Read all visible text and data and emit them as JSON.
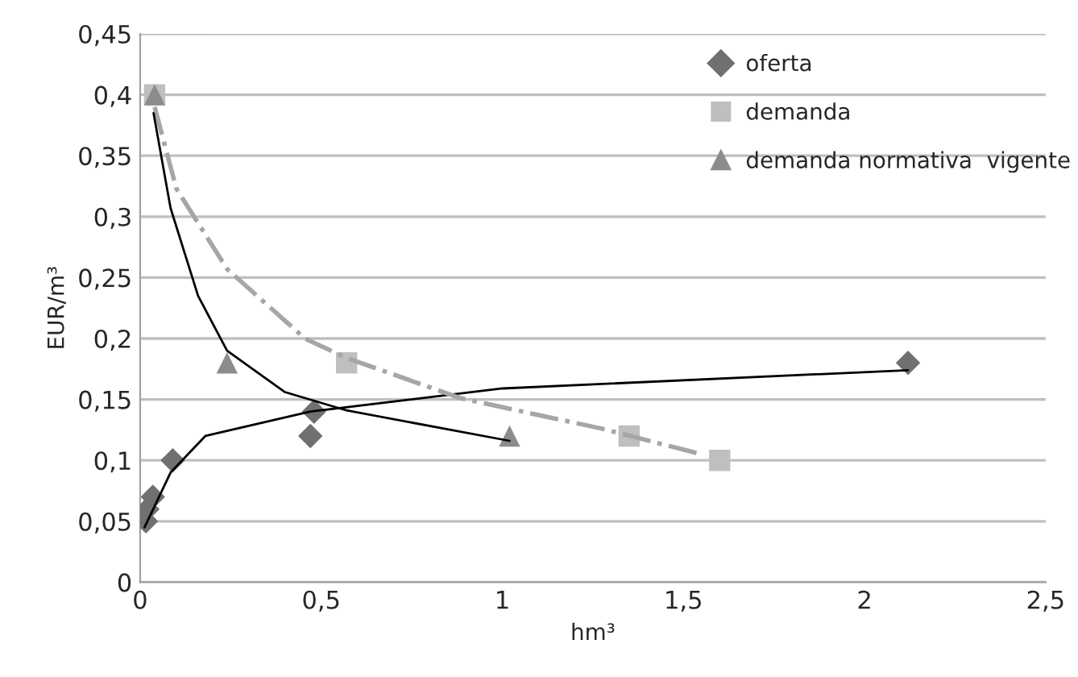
{
  "chart_data": {
    "type": "scatter",
    "xlabel": "hm³",
    "ylabel": "EUR/m³",
    "xlim": [
      0,
      2.5
    ],
    "ylim": [
      0,
      0.45
    ],
    "xticks": [
      0,
      {
        "value": 0.5,
        "label": "0,5"
      },
      1,
      {
        "value": 1.5,
        "label": "1,5"
      },
      2,
      {
        "value": 2.5,
        "label": "2,5"
      }
    ],
    "yticks": [
      0,
      {
        "value": 0.05,
        "label": "0,05"
      },
      {
        "value": 0.1,
        "label": "0,1"
      },
      {
        "value": 0.15,
        "label": "0,15"
      },
      {
        "value": 0.2,
        "label": "0,2"
      },
      {
        "value": 0.25,
        "label": "0,25"
      },
      {
        "value": 0.3,
        "label": "0,3"
      },
      {
        "value": 0.35,
        "label": "0,35"
      },
      {
        "value": 0.4,
        "label": "0,4"
      },
      {
        "value": 0.45,
        "label": "0,45"
      }
    ],
    "grid": "y",
    "legend": "top right",
    "series": [
      {
        "type": "line",
        "color": "#000000",
        "marker": "none",
        "line_style": "solid",
        "x": [
          0.012,
          0.084,
          0.18,
          0.47,
          1.0,
          2.12
        ],
        "values": [
          0.045,
          0.09,
          0.12,
          0.14,
          0.159,
          0.174
        ]
      },
      {
        "type": "line",
        "color": "#a6a6a6",
        "marker": "none",
        "line_style": "dashed",
        "x": [
          0.04,
          0.1,
          0.24,
          0.455,
          0.57,
          0.885,
          1.275,
          1.55
        ],
        "values": [
          0.39,
          0.323,
          0.257,
          0.2,
          0.184,
          0.151,
          0.126,
          0.105
        ]
      },
      {
        "type": "line",
        "color": "#000000",
        "marker": "none",
        "line_style": "solid",
        "x": [
          0.037,
          0.084,
          0.16,
          0.24,
          0.4,
          0.57,
          1.02
        ],
        "values": [
          0.385,
          0.307,
          0.235,
          0.19,
          0.156,
          0.141,
          0.116
        ]
      },
      {
        "name": "oferta",
        "color": "#707070",
        "marker": "diamond",
        "x": [
          0.016,
          0.02,
          0.035,
          0.09,
          0.47,
          0.48,
          2.12
        ],
        "values": [
          0.05,
          0.06,
          0.07,
          0.1,
          0.12,
          0.14,
          0.18
        ]
      },
      {
        "name": "demanda",
        "color": "#bfbfbf",
        "marker": "square",
        "x": [
          0.04,
          0.57,
          1.35,
          1.6
        ],
        "values": [
          0.4,
          0.18,
          0.12,
          0.1
        ]
      },
      {
        "name": "demanda normativa  vigente",
        "color": "#8c8c8c",
        "marker": "triangle",
        "x": [
          0.04,
          0.24,
          1.02
        ],
        "values": [
          0.4,
          0.18,
          0.12
        ]
      }
    ]
  }
}
